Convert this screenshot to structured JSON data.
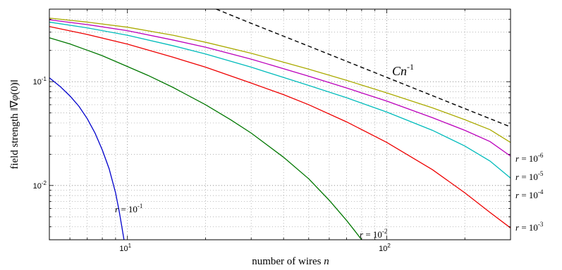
{
  "chart_data": {
    "type": "line",
    "title": "",
    "xlabel": "number of wires n",
    "ylabel": "field strength ||∇φ(0)||",
    "x_scale": "log",
    "y_scale": "log",
    "xlim": [
      5,
      300
    ],
    "ylim": [
      0.003,
      0.5
    ],
    "grid": true,
    "x_ticks": [
      {
        "value": 10,
        "base": "10",
        "exp": "1"
      },
      {
        "value": 100,
        "base": "10",
        "exp": "2"
      }
    ],
    "y_ticks": [
      {
        "value": 0.01,
        "base": "10",
        "exp": "-2"
      },
      {
        "value": 0.1,
        "base": "10",
        "exp": "-1"
      }
    ],
    "reference_line": {
      "label": "Cn",
      "label_exp": "-1",
      "style": "dashed",
      "color": "#000000",
      "points": [
        [
          22,
          0.5
        ],
        [
          30,
          0.365
        ],
        [
          50,
          0.22
        ],
        [
          100,
          0.11
        ],
        [
          200,
          0.055
        ],
        [
          300,
          0.0367
        ]
      ]
    },
    "series": [
      {
        "name": "r = 10^-1",
        "label_var": "r =",
        "label_base": "10",
        "label_exp": "-1",
        "color": "#0000cc",
        "points": [
          [
            5,
            0.109
          ],
          [
            5.5,
            0.09
          ],
          [
            6,
            0.073
          ],
          [
            6.5,
            0.058
          ],
          [
            7,
            0.044
          ],
          [
            7.5,
            0.032
          ],
          [
            8,
            0.022
          ],
          [
            8.5,
            0.0145
          ],
          [
            9,
            0.0085
          ],
          [
            9.3,
            0.0056
          ],
          [
            9.5,
            0.0041
          ],
          [
            9.7,
            0.003
          ]
        ]
      },
      {
        "name": "r = 10^-2",
        "label_var": "r =",
        "label_base": "10",
        "label_exp": "-2",
        "color": "#007700",
        "points": [
          [
            5,
            0.265
          ],
          [
            6,
            0.231
          ],
          [
            7,
            0.201
          ],
          [
            8,
            0.178
          ],
          [
            10,
            0.14
          ],
          [
            12,
            0.115
          ],
          [
            15,
            0.088
          ],
          [
            20,
            0.06
          ],
          [
            25,
            0.043
          ],
          [
            30,
            0.032
          ],
          [
            40,
            0.0187
          ],
          [
            50,
            0.0116
          ],
          [
            60,
            0.0072
          ],
          [
            70,
            0.0046
          ],
          [
            75,
            0.0037
          ],
          [
            80,
            0.003
          ]
        ]
      },
      {
        "name": "r = 10^-3",
        "label_var": "r =",
        "label_base": "10",
        "label_exp": "-3",
        "color": "#ee0000",
        "points": [
          [
            5,
            0.34
          ],
          [
            7,
            0.285
          ],
          [
            10,
            0.23
          ],
          [
            15,
            0.172
          ],
          [
            20,
            0.138
          ],
          [
            30,
            0.097
          ],
          [
            40,
            0.075
          ],
          [
            50,
            0.06
          ],
          [
            70,
            0.041
          ],
          [
            100,
            0.026
          ],
          [
            150,
            0.0142
          ],
          [
            200,
            0.0085
          ],
          [
            250,
            0.0055
          ],
          [
            300,
            0.0039
          ]
        ]
      },
      {
        "name": "r = 10^-4",
        "label_var": "r =",
        "label_base": "10",
        "label_exp": "-4",
        "color": "#00bbbb",
        "points": [
          [
            5,
            0.375
          ],
          [
            7,
            0.33
          ],
          [
            10,
            0.28
          ],
          [
            15,
            0.222
          ],
          [
            20,
            0.185
          ],
          [
            30,
            0.138
          ],
          [
            50,
            0.092
          ],
          [
            70,
            0.07
          ],
          [
            100,
            0.051
          ],
          [
            150,
            0.034
          ],
          [
            200,
            0.024
          ],
          [
            250,
            0.0172
          ],
          [
            300,
            0.0118
          ]
        ]
      },
      {
        "name": "r = 10^-5",
        "label_var": "r =",
        "label_base": "10",
        "label_exp": "-5",
        "color": "#bb00bb",
        "points": [
          [
            5,
            0.395
          ],
          [
            7,
            0.355
          ],
          [
            10,
            0.31
          ],
          [
            15,
            0.252
          ],
          [
            20,
            0.215
          ],
          [
            30,
            0.165
          ],
          [
            50,
            0.113
          ],
          [
            70,
            0.087
          ],
          [
            100,
            0.065
          ],
          [
            150,
            0.045
          ],
          [
            200,
            0.034
          ],
          [
            250,
            0.0265
          ],
          [
            300,
            0.0192
          ]
        ]
      },
      {
        "name": "r = 10^-6",
        "label_var": "r =",
        "label_base": "10",
        "label_exp": "-6",
        "color": "#aaaa00",
        "points": [
          [
            5,
            0.41
          ],
          [
            7,
            0.375
          ],
          [
            10,
            0.335
          ],
          [
            15,
            0.28
          ],
          [
            20,
            0.24
          ],
          [
            30,
            0.188
          ],
          [
            50,
            0.132
          ],
          [
            70,
            0.103
          ],
          [
            100,
            0.078
          ],
          [
            150,
            0.056
          ],
          [
            200,
            0.043
          ],
          [
            250,
            0.0345
          ],
          [
            300,
            0.026
          ]
        ]
      }
    ]
  }
}
